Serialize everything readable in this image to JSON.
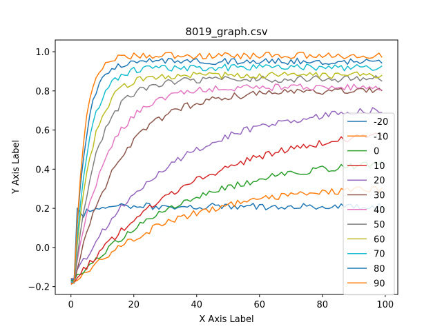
{
  "chart_data": {
    "type": "line",
    "title": "8019_graph.csv",
    "xlabel": "X Axis Label",
    "ylabel": "Y Axis Label",
    "xlim": [
      -5,
      104
    ],
    "ylim": [
      -0.24,
      1.06
    ],
    "xticks": [
      0,
      20,
      40,
      60,
      80,
      100
    ],
    "yticks": [
      -0.2,
      0.0,
      0.2,
      0.4,
      0.6,
      0.8,
      1.0
    ],
    "xtick_labels": [
      "0",
      "20",
      "40",
      "60",
      "80",
      "100"
    ],
    "ytick_labels": [
      "−0.2",
      "0.0",
      "0.2",
      "0.4",
      "0.6",
      "0.8",
      "1.0"
    ],
    "grid": false,
    "legend_position": "right",
    "x_range": [
      0,
      99
    ],
    "series": [
      {
        "name": "-20",
        "color": "#1f77b4",
        "start": -0.17,
        "plateau": 0.21,
        "rate": 0.5
      },
      {
        "name": "-10",
        "color": "#ff7f0e",
        "start": -0.18,
        "plateau": 0.32,
        "rate": 0.032
      },
      {
        "name": "0",
        "color": "#2ca02c",
        "start": -0.17,
        "plateau": 0.47,
        "rate": 0.028
      },
      {
        "name": "10",
        "color": "#d62728",
        "start": -0.18,
        "plateau": 0.64,
        "rate": 0.026
      },
      {
        "name": "20",
        "color": "#9467bd",
        "start": -0.16,
        "plateau": 0.73,
        "rate": 0.035
      },
      {
        "name": "30",
        "color": "#8c564b",
        "start": -0.17,
        "plateau": 0.8,
        "rate": 0.07
      },
      {
        "name": "40",
        "color": "#e377c2",
        "start": -0.17,
        "plateau": 0.82,
        "rate": 0.1
      },
      {
        "name": "50",
        "color": "#7f7f7f",
        "start": -0.18,
        "plateau": 0.86,
        "rate": 0.14
      },
      {
        "name": "60",
        "color": "#bcbd22",
        "start": -0.17,
        "plateau": 0.88,
        "rate": 0.18
      },
      {
        "name": "70",
        "color": "#17becf",
        "start": -0.18,
        "plateau": 0.92,
        "rate": 0.22
      },
      {
        "name": "80",
        "color": "#1f77b4",
        "start": -0.17,
        "plateau": 0.95,
        "rate": 0.28
      },
      {
        "name": "90",
        "color": "#ff7f0e",
        "start": -0.18,
        "plateau": 0.98,
        "rate": 0.32
      }
    ]
  }
}
